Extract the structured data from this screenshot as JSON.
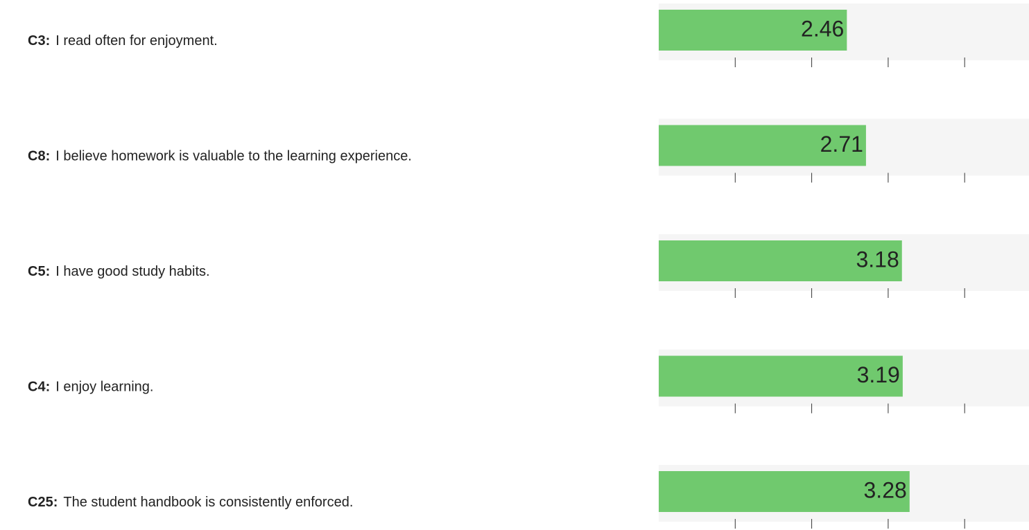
{
  "chart_data": {
    "type": "bar",
    "orientation": "horizontal",
    "codes": [
      "C3:",
      "C8:",
      "C5:",
      "C4:",
      "C25:"
    ],
    "categories": [
      "I read often for enjoyment.",
      "I believe homework is valuable to the learning experience.",
      "I have good study habits.",
      "I enjoy learning.",
      "The student handbook is consistently enforced."
    ],
    "values": [
      2.46,
      2.71,
      3.18,
      3.19,
      3.28
    ],
    "color": "#70c96e",
    "track_color": "#f5f5f5",
    "xlim": [
      0,
      5
    ],
    "xticks": [
      1,
      2,
      3,
      4
    ]
  }
}
